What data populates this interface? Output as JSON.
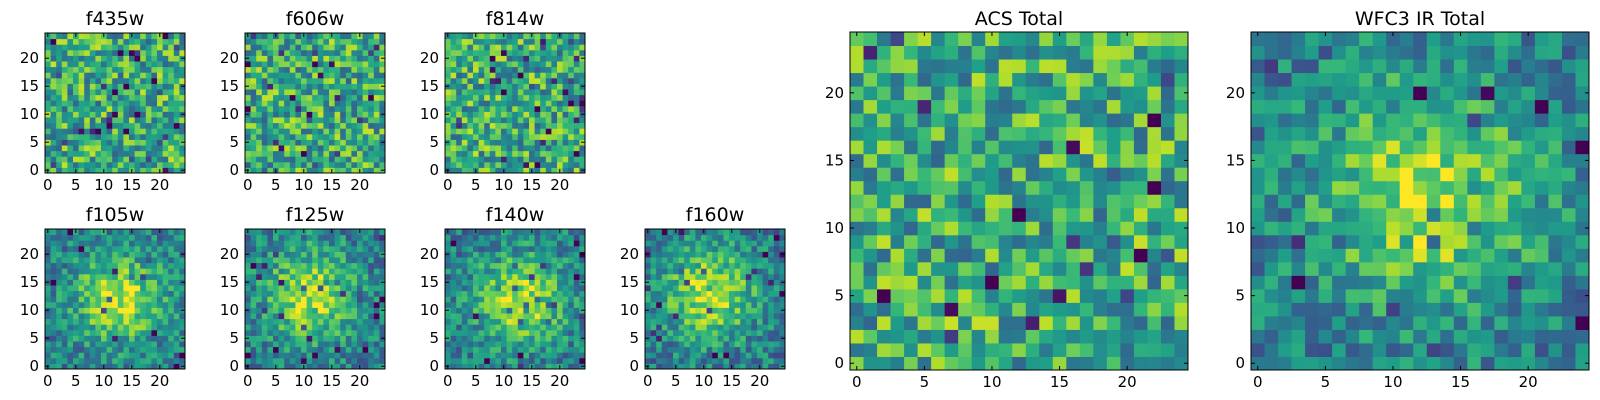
{
  "figure": {
    "background": "#ffffff",
    "colormap": "viridis"
  },
  "chart_data": [
    {
      "type": "heatmap",
      "id": "f435w",
      "title": "f435w",
      "grid_size": 25,
      "xlim": [
        -0.5,
        24.5
      ],
      "ylim": [
        -0.5,
        24.5
      ],
      "xticks": [
        0,
        5,
        10,
        15,
        20
      ],
      "yticks": [
        0,
        5,
        10,
        15,
        20
      ],
      "xtick_labels": [
        "0",
        "5",
        "10",
        "15",
        "20"
      ],
      "ytick_labels": [
        "0",
        "5",
        "10",
        "15",
        "20"
      ],
      "pattern": "noise",
      "seed": 11
    },
    {
      "type": "heatmap",
      "id": "f606w",
      "title": "f606w",
      "grid_size": 25,
      "xlim": [
        -0.5,
        24.5
      ],
      "ylim": [
        -0.5,
        24.5
      ],
      "xticks": [
        0,
        5,
        10,
        15,
        20
      ],
      "yticks": [
        0,
        5,
        10,
        15,
        20
      ],
      "xtick_labels": [
        "0",
        "5",
        "10",
        "15",
        "20"
      ],
      "ytick_labels": [
        "0",
        "5",
        "10",
        "15",
        "20"
      ],
      "pattern": "noise",
      "seed": 23
    },
    {
      "type": "heatmap",
      "id": "f814w",
      "title": "f814w",
      "grid_size": 25,
      "xlim": [
        -0.5,
        24.5
      ],
      "ylim": [
        -0.5,
        24.5
      ],
      "xticks": [
        0,
        5,
        10,
        15,
        20
      ],
      "yticks": [
        0,
        5,
        10,
        15,
        20
      ],
      "xtick_labels": [
        "0",
        "5",
        "10",
        "15",
        "20"
      ],
      "ytick_labels": [
        "0",
        "5",
        "10",
        "15",
        "20"
      ],
      "pattern": "noise",
      "seed": 37
    },
    {
      "type": "heatmap",
      "id": "f105w",
      "title": "f105w",
      "grid_size": 25,
      "xlim": [
        -0.5,
        24.5
      ],
      "ylim": [
        -0.5,
        24.5
      ],
      "xticks": [
        0,
        5,
        10,
        15,
        20
      ],
      "yticks": [
        0,
        5,
        10,
        15,
        20
      ],
      "xtick_labels": [
        "0",
        "5",
        "10",
        "15",
        "20"
      ],
      "ytick_labels": [
        "0",
        "5",
        "10",
        "15",
        "20"
      ],
      "pattern": "source",
      "seed": 41
    },
    {
      "type": "heatmap",
      "id": "f125w",
      "title": "f125w",
      "grid_size": 25,
      "xlim": [
        -0.5,
        24.5
      ],
      "ylim": [
        -0.5,
        24.5
      ],
      "xticks": [
        0,
        5,
        10,
        15,
        20
      ],
      "yticks": [
        0,
        5,
        10,
        15,
        20
      ],
      "xtick_labels": [
        "0",
        "5",
        "10",
        "15",
        "20"
      ],
      "ytick_labels": [
        "0",
        "5",
        "10",
        "15",
        "20"
      ],
      "pattern": "source",
      "seed": 53
    },
    {
      "type": "heatmap",
      "id": "f140w",
      "title": "f140w",
      "grid_size": 25,
      "xlim": [
        -0.5,
        24.5
      ],
      "ylim": [
        -0.5,
        24.5
      ],
      "xticks": [
        0,
        5,
        10,
        15,
        20
      ],
      "yticks": [
        0,
        5,
        10,
        15,
        20
      ],
      "xtick_labels": [
        "0",
        "5",
        "10",
        "15",
        "20"
      ],
      "ytick_labels": [
        "0",
        "5",
        "10",
        "15",
        "20"
      ],
      "pattern": "source",
      "seed": 67
    },
    {
      "type": "heatmap",
      "id": "f160w",
      "title": "f160w",
      "grid_size": 25,
      "xlim": [
        -0.5,
        24.5
      ],
      "ylim": [
        -0.5,
        24.5
      ],
      "xticks": [
        0,
        5,
        10,
        15,
        20
      ],
      "yticks": [
        0,
        5,
        10,
        15,
        20
      ],
      "xtick_labels": [
        "0",
        "5",
        "10",
        "15",
        "20"
      ],
      "ytick_labels": [
        "0",
        "5",
        "10",
        "15",
        "20"
      ],
      "pattern": "source",
      "seed": 79
    },
    {
      "type": "heatmap",
      "id": "acs_total",
      "title": "ACS Total",
      "grid_size": 25,
      "xlim": [
        -0.5,
        24.5
      ],
      "ylim": [
        -0.5,
        24.5
      ],
      "xticks": [
        0,
        5,
        10,
        15,
        20
      ],
      "yticks": [
        0,
        5,
        10,
        15,
        20
      ],
      "xtick_labels": [
        "0",
        "5",
        "10",
        "15",
        "20"
      ],
      "ytick_labels": [
        "0",
        "5",
        "10",
        "15",
        "20"
      ],
      "pattern": "noise",
      "seed": 97
    },
    {
      "type": "heatmap",
      "id": "wfc3_total",
      "title": "WFC3 IR Total",
      "grid_size": 25,
      "xlim": [
        -0.5,
        24.5
      ],
      "ylim": [
        -0.5,
        24.5
      ],
      "xticks": [
        0,
        5,
        10,
        15,
        20
      ],
      "yticks": [
        0,
        5,
        10,
        15,
        20
      ],
      "xtick_labels": [
        "0",
        "5",
        "10",
        "15",
        "20"
      ],
      "ytick_labels": [
        "0",
        "5",
        "10",
        "15",
        "20"
      ],
      "pattern": "source",
      "seed": 113
    }
  ]
}
